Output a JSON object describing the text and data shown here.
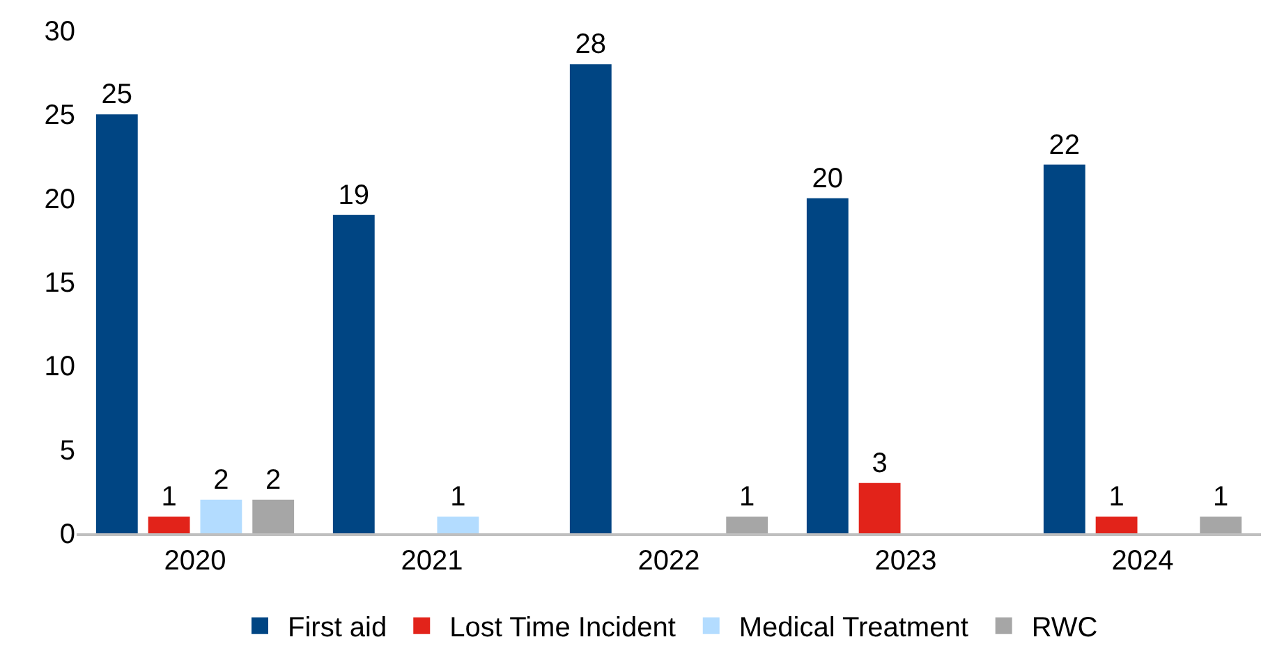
{
  "chart_data": {
    "type": "bar",
    "categories": [
      "2020",
      "2021",
      "2022",
      "2023",
      "2024"
    ],
    "series": [
      {
        "name": "First aid",
        "color": "#004583",
        "values": [
          25,
          19,
          28,
          20,
          22
        ],
        "value_labels": [
          "25",
          "19",
          "28",
          "20",
          "22"
        ]
      },
      {
        "name": "Lost Time Incident",
        "color": "#e2231a",
        "values": [
          1,
          0,
          0,
          3,
          1
        ],
        "value_labels": [
          "1",
          null,
          null,
          "3",
          "1"
        ]
      },
      {
        "name": "Medical Treatment",
        "color": "#b3dcff",
        "values": [
          2,
          1,
          0,
          0,
          0
        ],
        "value_labels": [
          "2",
          "1",
          null,
          null,
          null
        ]
      },
      {
        "name": "RWC",
        "color": "#a6a6a6",
        "values": [
          2,
          0,
          1,
          0,
          1
        ],
        "value_labels": [
          "2",
          null,
          "1",
          null,
          "1"
        ]
      }
    ],
    "ylim": [
      0,
      30
    ],
    "yticks": [
      0,
      5,
      10,
      15,
      20,
      25,
      30
    ],
    "legend": "bottom"
  }
}
